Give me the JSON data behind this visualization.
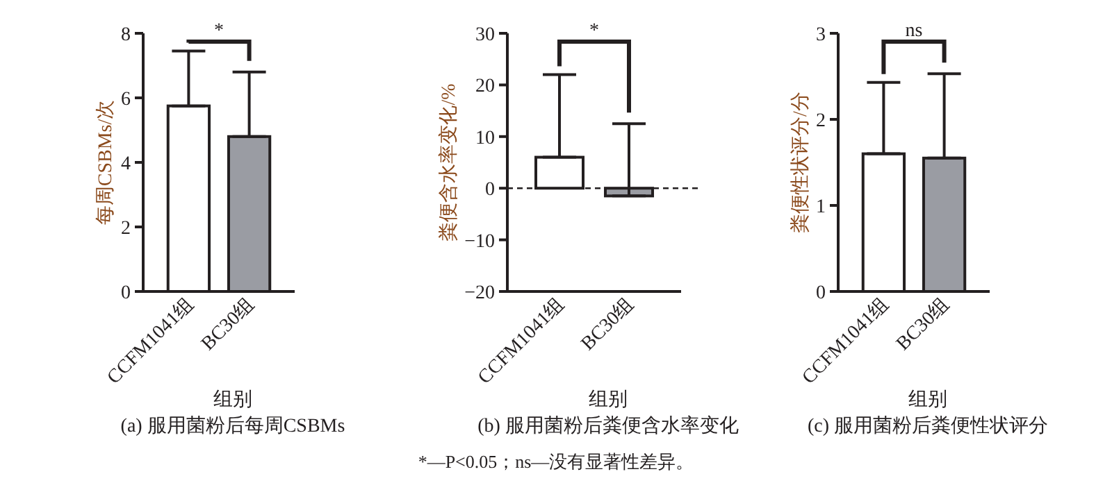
{
  "chart_data": [
    {
      "type": "bar",
      "title": "(a) 服用菌粉后每周CSBMs",
      "xlabel": "组别",
      "ylabel": "每周CSBMs/次",
      "categories": [
        "CCFM1041组",
        "BC30组"
      ],
      "series": [
        {
          "values": [
            5.75,
            4.8
          ],
          "colors": [
            "#ffffff",
            "#9a9ca3"
          ],
          "errors": [
            [
              5.75,
              7.45
            ],
            [
              4.8,
              6.8
            ]
          ]
        }
      ],
      "ylim": [
        0,
        8
      ],
      "yticks": [
        0,
        2,
        4,
        6,
        8
      ],
      "annotations": [
        "*"
      ]
    },
    {
      "type": "bar",
      "title": "(b) 服用菌粉后粪便含水率变化",
      "xlabel": "组别",
      "ylabel": "粪便含水率变化/%",
      "categories": [
        "CCFM1041组",
        "BC30组"
      ],
      "series": [
        {
          "values": [
            6,
            -1.5
          ],
          "colors": [
            "#ffffff",
            "#9a9ca3"
          ],
          "errors": [
            [
              6,
              22
            ],
            [
              -1.5,
              12.5
            ]
          ]
        }
      ],
      "ylim": [
        -20,
        30
      ],
      "yticks": [
        -20,
        -10,
        0,
        10,
        20,
        30
      ],
      "ref_lines": [
        {
          "axis": "y",
          "value": 0,
          "line_style": "dashed"
        }
      ],
      "annotations": [
        "*",
        "*—P<0.05；ns—没有显著性差异。"
      ]
    },
    {
      "type": "bar",
      "title": "(c) 服用菌粉后粪便性状评分",
      "xlabel": "组别",
      "ylabel": "粪便性状评分/分",
      "categories": [
        "CCFM1041组",
        "BC30组"
      ],
      "series": [
        {
          "values": [
            1.6,
            1.55
          ],
          "colors": [
            "#ffffff",
            "#9a9ca3"
          ],
          "errors": [
            [
              1.6,
              2.43
            ],
            [
              1.55,
              2.53
            ]
          ]
        }
      ],
      "ylim": [
        0,
        3
      ],
      "yticks": [
        0,
        1,
        2,
        3
      ],
      "annotations": [
        "ns"
      ]
    }
  ]
}
